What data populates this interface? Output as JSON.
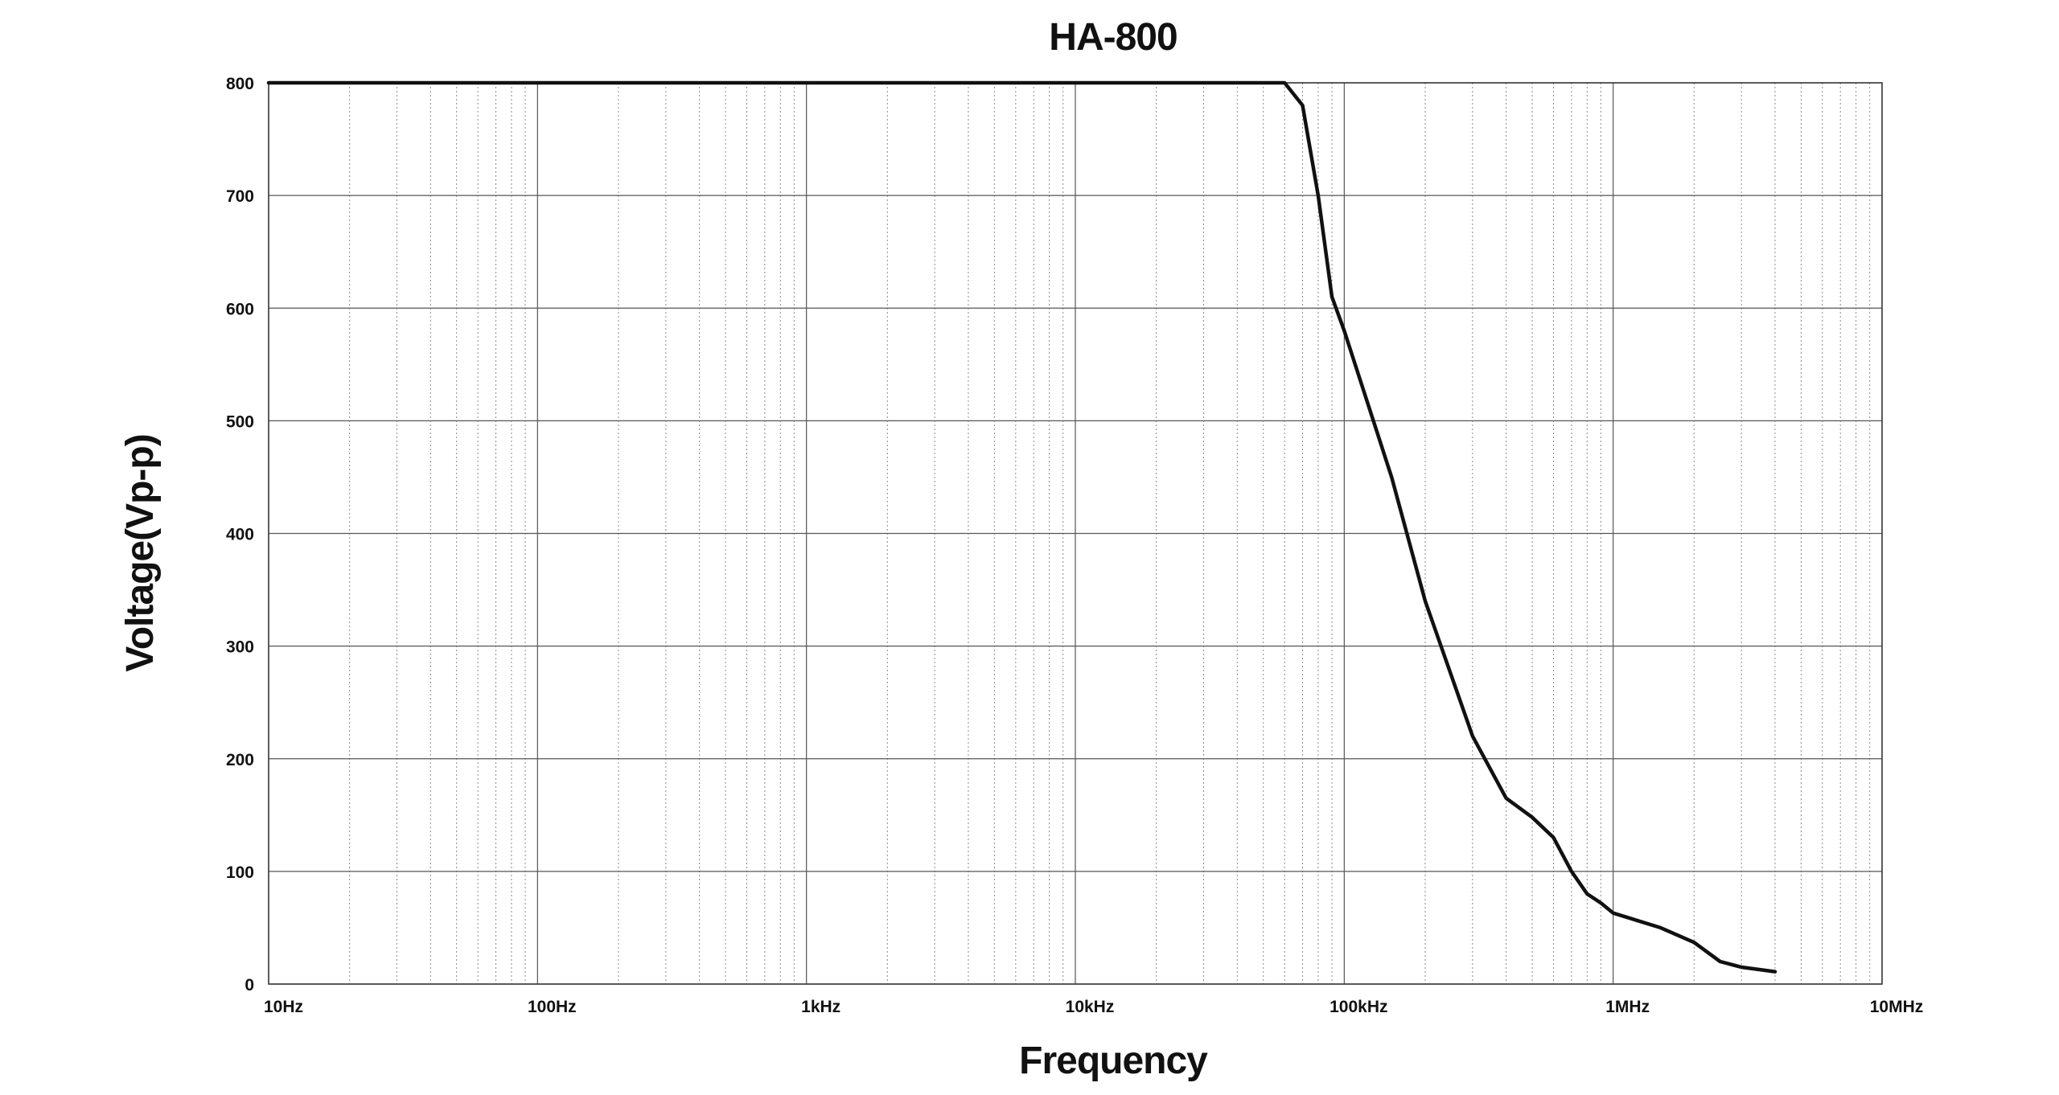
{
  "chart_data": {
    "type": "line",
    "title": "HA-800",
    "xlabel": "Frequency",
    "ylabel": "Voltage(Vp-p)",
    "x_scale": "log",
    "xlim": [
      10,
      10000000
    ],
    "ylim": [
      0,
      800
    ],
    "grid": true,
    "x_ticks": [
      {
        "value": 10,
        "label": "10Hz"
      },
      {
        "value": 100,
        "label": "100Hz"
      },
      {
        "value": 1000,
        "label": "1kHz"
      },
      {
        "value": 10000,
        "label": "10kHz"
      },
      {
        "value": 100000,
        "label": "100kHz"
      },
      {
        "value": 1000000,
        "label": "1MHz"
      },
      {
        "value": 10000000,
        "label": "10MHz"
      }
    ],
    "y_ticks": [
      {
        "value": 0,
        "label": "0"
      },
      {
        "value": 100,
        "label": "100"
      },
      {
        "value": 200,
        "label": "200"
      },
      {
        "value": 300,
        "label": "300"
      },
      {
        "value": 400,
        "label": "400"
      },
      {
        "value": 500,
        "label": "500"
      },
      {
        "value": 600,
        "label": "600"
      },
      {
        "value": 700,
        "label": "700"
      },
      {
        "value": 800,
        "label": "800"
      }
    ],
    "series": [
      {
        "color": "#111111",
        "points": [
          {
            "x": 10,
            "y": 800
          },
          {
            "x": 60000,
            "y": 800
          },
          {
            "x": 70000,
            "y": 780
          },
          {
            "x": 80000,
            "y": 700
          },
          {
            "x": 90000,
            "y": 610
          },
          {
            "x": 100000,
            "y": 580
          },
          {
            "x": 150000,
            "y": 450
          },
          {
            "x": 200000,
            "y": 340
          },
          {
            "x": 300000,
            "y": 220
          },
          {
            "x": 400000,
            "y": 165
          },
          {
            "x": 500000,
            "y": 148
          },
          {
            "x": 600000,
            "y": 130
          },
          {
            "x": 700000,
            "y": 100
          },
          {
            "x": 800000,
            "y": 80
          },
          {
            "x": 900000,
            "y": 72
          },
          {
            "x": 1000000,
            "y": 63
          },
          {
            "x": 1500000,
            "y": 50
          },
          {
            "x": 2000000,
            "y": 37
          },
          {
            "x": 2500000,
            "y": 20
          },
          {
            "x": 3000000,
            "y": 15
          },
          {
            "x": 4000000,
            "y": 11
          }
        ]
      }
    ]
  }
}
